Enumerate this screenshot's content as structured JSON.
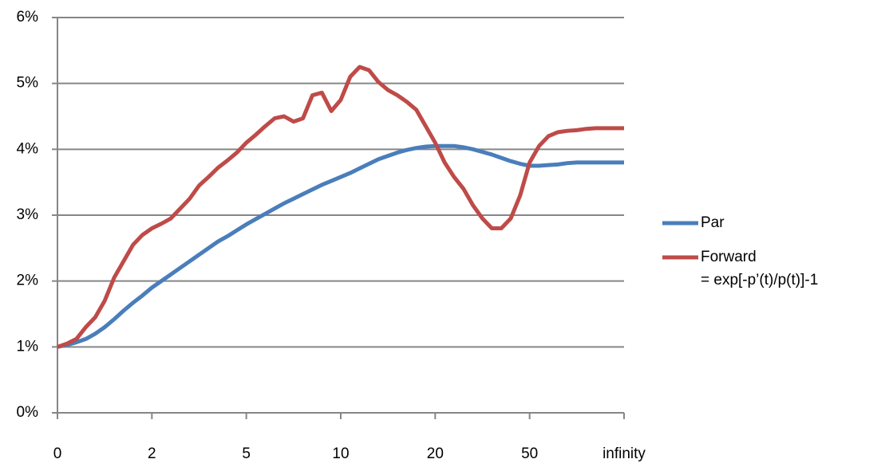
{
  "chart_data": {
    "type": "line",
    "categories": [
      "0",
      null,
      null,
      null,
      null,
      null,
      null,
      null,
      null,
      null,
      "2",
      null,
      null,
      null,
      null,
      null,
      null,
      null,
      null,
      null,
      "5",
      null,
      null,
      null,
      null,
      null,
      null,
      null,
      null,
      null,
      "10",
      null,
      null,
      null,
      null,
      null,
      null,
      null,
      null,
      null,
      "20",
      null,
      null,
      null,
      null,
      null,
      null,
      null,
      null,
      null,
      "50",
      null,
      null,
      null,
      null,
      null,
      null,
      null,
      null,
      null,
      "infinity"
    ],
    "series": [
      {
        "name": "Par",
        "color": "#4a7ebb",
        "values": [
          1.0,
          1.03,
          1.07,
          1.12,
          1.2,
          1.3,
          1.42,
          1.55,
          1.67,
          1.78,
          1.9,
          2.0,
          2.1,
          2.2,
          2.3,
          2.4,
          2.5,
          2.6,
          2.68,
          2.77,
          2.86,
          2.94,
          3.02,
          3.1,
          3.18,
          3.25,
          3.32,
          3.39,
          3.46,
          3.52,
          3.58,
          3.64,
          3.71,
          3.78,
          3.85,
          3.9,
          3.95,
          3.99,
          4.02,
          4.04,
          4.05,
          4.05,
          4.05,
          4.03,
          4.0,
          3.96,
          3.92,
          3.87,
          3.82,
          3.78,
          3.75,
          3.75,
          3.76,
          3.77,
          3.79,
          3.8,
          3.8,
          3.8,
          3.8,
          3.8,
          3.8
        ]
      },
      {
        "name": "Forward\n= exp[-p’(t)/p(t)]-1",
        "color": "#be4b48",
        "values": [
          1.0,
          1.05,
          1.12,
          1.3,
          1.45,
          1.7,
          2.05,
          2.3,
          2.55,
          2.7,
          2.8,
          2.87,
          2.95,
          3.1,
          3.25,
          3.45,
          3.58,
          3.72,
          3.83,
          3.95,
          4.1,
          4.22,
          4.35,
          4.47,
          4.5,
          4.42,
          4.47,
          4.82,
          4.86,
          4.58,
          4.75,
          5.1,
          5.25,
          5.2,
          5.02,
          4.9,
          4.82,
          4.72,
          4.6,
          4.35,
          4.1,
          3.8,
          3.58,
          3.4,
          3.15,
          2.95,
          2.8,
          2.8,
          2.95,
          3.3,
          3.8,
          4.05,
          4.2,
          4.26,
          4.28,
          4.29,
          4.31,
          4.32,
          4.32,
          4.32,
          4.32
        ]
      }
    ],
    "ylim": [
      0,
      6
    ],
    "yticks": [
      {
        "value": 0,
        "label": "0%"
      },
      {
        "value": 1,
        "label": "1%"
      },
      {
        "value": 2,
        "label": "2%"
      },
      {
        "value": 3,
        "label": "3%"
      },
      {
        "value": 4,
        "label": "4%"
      },
      {
        "value": 5,
        "label": "5%"
      },
      {
        "value": 6,
        "label": "6%"
      }
    ],
    "grid": true,
    "legend": "right"
  }
}
